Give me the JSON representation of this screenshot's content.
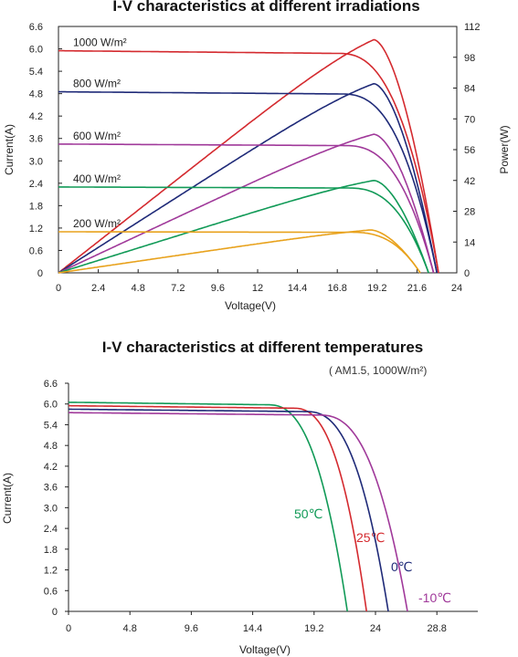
{
  "chart_data": [
    {
      "type": "line",
      "title": "I-V characteristics at different irradiations",
      "xlabel": "Voltage(V)",
      "ylabel": "Current(A)",
      "y2label": "Power(W)",
      "xlim": [
        0,
        24
      ],
      "ylim": [
        0,
        6.6
      ],
      "y2lim": [
        0,
        112
      ],
      "x_ticks": [
        "0",
        "2.4",
        "4.8",
        "7.2",
        "9.6",
        "12",
        "14.4",
        "16.8",
        "19.2",
        "21.6",
        "24"
      ],
      "y_ticks": [
        "0",
        "0.6",
        "1.2",
        "1.8",
        "2.4",
        "3.0",
        "3.6",
        "4.2",
        "4.8",
        "5.4",
        "6.0",
        "6.6"
      ],
      "y2_ticks": [
        "0",
        "14",
        "28",
        "42",
        "56",
        "70",
        "84",
        "98",
        "112"
      ],
      "grid": false,
      "series": [
        {
          "name": "1000 W/m²",
          "color": "#d42a2f",
          "isc": 5.95,
          "voc": 22.9,
          "flat_end": 16.8,
          "pmax": 106,
          "vmp": 19.0
        },
        {
          "name": "800 W/m²",
          "color": "#1f2a78",
          "isc": 4.85,
          "voc": 22.8,
          "flat_end": 17.0,
          "pmax": 86,
          "vmp": 19.0
        },
        {
          "name": "600 W/m²",
          "color": "#a0399a",
          "isc": 3.45,
          "voc": 22.6,
          "flat_end": 17.2,
          "pmax": 63,
          "vmp": 19.0
        },
        {
          "name": "400 W/m²",
          "color": "#119a57",
          "isc": 2.3,
          "voc": 22.3,
          "flat_end": 17.4,
          "pmax": 42,
          "vmp": 19.0
        },
        {
          "name": "200 W/m²",
          "color": "#e8a21d",
          "isc": 1.1,
          "voc": 21.8,
          "flat_end": 17.6,
          "pmax": 19.5,
          "vmp": 18.8
        }
      ]
    },
    {
      "type": "line",
      "title": "I-V characteristics at different temperatures",
      "subtitle": "( AM1.5, 1000W/m²)",
      "xlabel": "Voltage(V)",
      "ylabel": "Current(A)",
      "xlim": [
        0,
        32
      ],
      "ylim": [
        0,
        6.6
      ],
      "x_ticks": [
        "0",
        "4.8",
        "9.6",
        "14.4",
        "19.2",
        "24",
        "28.8"
      ],
      "y_ticks": [
        "0",
        "0.6",
        "1.2",
        "1.8",
        "2.4",
        "3.0",
        "3.6",
        "4.2",
        "4.8",
        "5.4",
        "6.0",
        "6.6"
      ],
      "grid": false,
      "series": [
        {
          "name": "50℃",
          "color": "#119a57",
          "isc": 6.05,
          "voc": 21.8,
          "flat_end": 15.5
        },
        {
          "name": "25℃",
          "color": "#d42a2f",
          "isc": 5.95,
          "voc": 23.3,
          "flat_end": 17.5
        },
        {
          "name": "0℃",
          "color": "#1f2a78",
          "isc": 5.85,
          "voc": 25.0,
          "flat_end": 18.5
        },
        {
          "name": "-10℃",
          "color": "#a0399a",
          "isc": 5.75,
          "voc": 26.5,
          "flat_end": 19.5
        }
      ]
    }
  ]
}
